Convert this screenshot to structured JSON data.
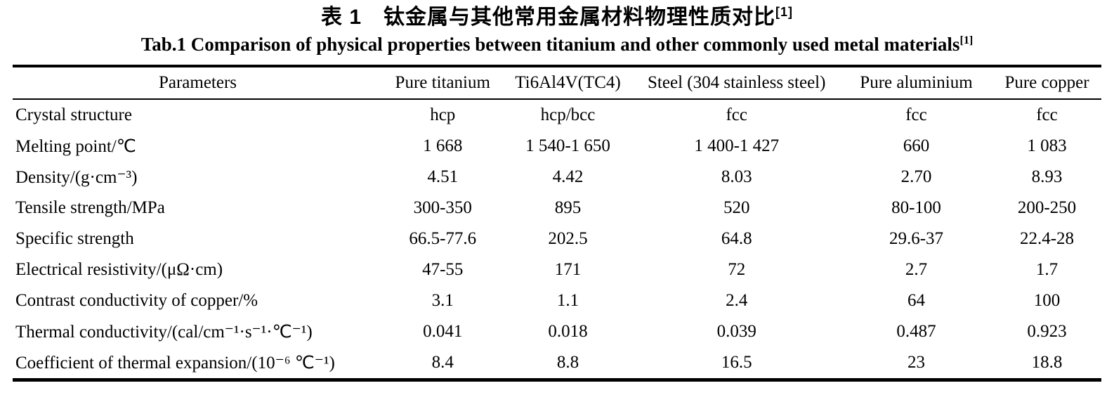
{
  "titles": {
    "zh": "表 1　钛金属与其他常用金属材料物理性质对比",
    "zh_sup": "[1]",
    "en": "Tab.1 Comparison of physical properties between titanium and other commonly used metal materials",
    "en_sup": "[1]"
  },
  "table": {
    "columns": [
      "Parameters",
      "Pure titanium",
      "Ti6Al4V(TC4)",
      "Steel (304 stainless steel)",
      "Pure aluminium",
      "Pure copper"
    ],
    "rows": [
      {
        "label": "Crystal structure",
        "values": [
          "hcp",
          "hcp/bcc",
          "fcc",
          "fcc",
          "fcc"
        ]
      },
      {
        "label": "Melting point/℃",
        "values": [
          "1 668",
          "1 540-1 650",
          "1 400-1 427",
          "660",
          "1 083"
        ]
      },
      {
        "label": "Density/(g·cm⁻³)",
        "values": [
          "4.51",
          "4.42",
          "8.03",
          "2.70",
          "8.93"
        ]
      },
      {
        "label": "Tensile strength/MPa",
        "values": [
          "300-350",
          "895",
          "520",
          "80-100",
          "200-250"
        ]
      },
      {
        "label": "Specific strength",
        "values": [
          "66.5-77.6",
          "202.5",
          "64.8",
          "29.6-37",
          "22.4-28"
        ]
      },
      {
        "label": "Electrical resistivity/(μΩ·cm)",
        "values": [
          "47-55",
          "171",
          "72",
          "2.7",
          "1.7"
        ]
      },
      {
        "label": "Contrast conductivity of copper/%",
        "values": [
          "3.1",
          "1.1",
          "2.4",
          "64",
          "100"
        ]
      },
      {
        "label": "Thermal conductivity/(cal/cm⁻¹·s⁻¹·℃⁻¹)",
        "values": [
          "0.041",
          "0.018",
          "0.039",
          "0.487",
          "0.923"
        ]
      },
      {
        "label": "Coefficient of thermal expansion/(10⁻⁶ ℃⁻¹)",
        "values": [
          "8.4",
          "8.8",
          "16.5",
          "23",
          "18.8"
        ]
      }
    ]
  },
  "colors": {
    "text": "#000000",
    "background": "#ffffff",
    "rule": "#000000"
  }
}
